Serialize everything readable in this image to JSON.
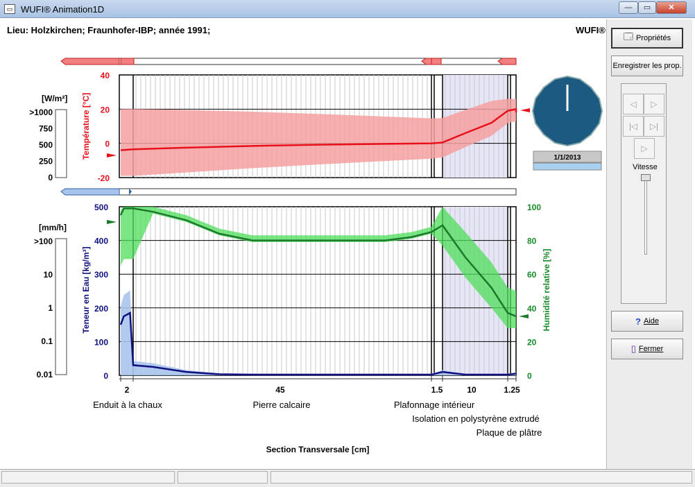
{
  "window": {
    "title": "WUFI® Animation1D",
    "icon": "app-icon",
    "minimize_label": "—",
    "maximize_label": "▭",
    "close_label": "✕"
  },
  "header": {
    "location": "Lieu: Holzkirchen; Fraunhofer-IBP; année 1991;",
    "brand": "WUFI®"
  },
  "temperature_chart": {
    "y_axis_label": "Température [°C]",
    "ylim": [
      -20,
      40
    ],
    "y_ticks": [
      "40",
      "20",
      "0",
      "-20"
    ],
    "color": "#e8101a"
  },
  "heat_flux_scale": {
    "unit": "[W/m²]",
    "ticks": [
      ">1000",
      "750",
      "500",
      "250",
      "0"
    ]
  },
  "moisture_chart": {
    "left_axis_label": "Teneur en Eau [kg/m³]",
    "left_ylim": [
      0,
      500
    ],
    "left_ticks": [
      "500",
      "400",
      "300",
      "200",
      "100",
      "0"
    ],
    "right_axis_label": "Humidité relative [%]",
    "right_ylim": [
      0,
      100
    ],
    "right_ticks": [
      "100",
      "80",
      "60",
      "40",
      "20",
      "0"
    ],
    "water_color": "#101080",
    "rh_color": "#1a8a2a"
  },
  "rain_scale": {
    "unit": "[mm/h]",
    "ticks": [
      ">100",
      "10",
      "1",
      "0.1",
      "0.01"
    ]
  },
  "layers": {
    "thicknesses": [
      "2",
      "45",
      "1.5",
      "10",
      "1.25"
    ],
    "names": [
      "Enduit à la chaux",
      "Pierre calcaire",
      "Plafonnage intérieur",
      "Isolation en polystyrène extrudé",
      "Plaque de plâtre"
    ]
  },
  "x_axis_label": "Section Transversale [cm]",
  "clock": {
    "date": "1/1/2013"
  },
  "buttons": {
    "properties": "Propriétés",
    "save_properties": "Enregistrer les prop.",
    "help": "Aide",
    "close": "Fermer"
  },
  "navigation": {
    "speed_label": "Vitesse"
  },
  "chart_data": [
    {
      "type": "line",
      "ylabel": "Température [°C]",
      "ylim": [
        -20,
        40
      ],
      "x": [
        0,
        2,
        10,
        20,
        30,
        40,
        47,
        48.5,
        52,
        56,
        60,
        58.5,
        59.75
      ],
      "series": [
        {
          "values": [
            -4,
            -3.5,
            -2.5,
            -1.5,
            -0.8,
            -0.3,
            0,
            0.5,
            6,
            12,
            18,
            19,
            20
          ]
        }
      ]
    },
    {
      "type": "line",
      "ylabel": "Teneur en Eau [kg/m³]",
      "y2label": "Humidité relative [%]",
      "ylim": [
        0,
        500
      ],
      "y2lim": [
        0,
        100
      ],
      "x": [
        0,
        0.5,
        1.5,
        2,
        5,
        10,
        15,
        20,
        30,
        40,
        44,
        47,
        48.5,
        52,
        56,
        58.5,
        59.75
      ],
      "series": [
        {
          "values": [
            150,
            175,
            185,
            30,
            25,
            10,
            3,
            2,
            2,
            2,
            2,
            2,
            10,
            2,
            2,
            2,
            5
          ]
        },
        {
          "values": [
            95,
            99,
            99,
            99,
            97,
            92,
            84,
            80,
            80,
            80,
            82,
            85,
            89,
            70,
            52,
            37,
            35
          ]
        }
      ]
    }
  ]
}
